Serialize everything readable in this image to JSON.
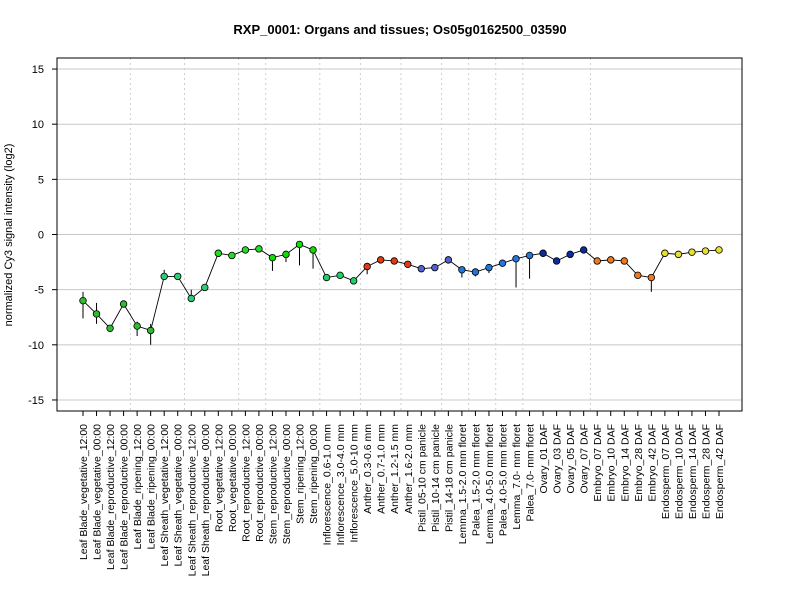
{
  "chart_data": {
    "type": "line",
    "title": "RXP_0001: Organs and tissues; Os05g0162500_03590",
    "ylabel": "normalized Cy3 signal intensity (log2)",
    "ylim": [
      -16,
      16
    ],
    "yticks": [
      -15,
      -10,
      -5,
      0,
      5,
      10,
      15
    ],
    "grid": {
      "horizontal": true,
      "vertical_dotted_group_separators": true
    },
    "group_separators_after_index": [
      3,
      7,
      11,
      13,
      17,
      20,
      23,
      26,
      28,
      30,
      32,
      37
    ],
    "categories": [
      "Leaf Blade_vegetative_12:00",
      "Leaf Blade_vegetative_00:00",
      "Leaf Blade_reproductive_12:00",
      "Leaf Blade_reproductive_00:00",
      "Leaf Blade_ripening_12:00",
      "Leaf Blade_ripening_00:00",
      "Leaf Sheath_vegetative_12:00",
      "Leaf Sheath_vegetative_00:00",
      "Leaf Sheath_reproductive_12:00",
      "Leaf Sheath_reproductive_00:00",
      "Root_vegetative_12:00",
      "Root_vegetative_00:00",
      "Root_reproductive_12:00",
      "Root_reproductive_00:00",
      "Stem_reproductive_12:00",
      "Stem_reproductive_00:00",
      "Stem_ripening_12:00",
      "Stem_ripening_00:00",
      "Inflorescence_0.6-1.0 mm",
      "Inflorescence_3.0-4.0 mm",
      "Inflorescence_5.0-10 mm",
      "Anther_0.3-0.6 mm",
      "Anther_0.7-1.0 mm",
      "Anther_1.2-1.5 mm",
      "Anther_1.6-2.0 mm",
      "Pistil_05-10 cm panicle",
      "Pistil_10-14 cm panicle",
      "Pistil_14-18 cm panicle",
      "Lemma_1.5-2.0 mm floret",
      "Palea_1.5-2.0 mm floret",
      "Lemma_4.0-5.0 mm floret",
      "Palea_4.0-5.0 mm floret",
      "Lemma_7.0- mm floret",
      "Palea_7.0- mm floret",
      "Ovary_01 DAF",
      "Ovary_03 DAF",
      "Ovary_05 DAF",
      "Ovary_07 DAF",
      "Embryo_07 DAF",
      "Embryo_10 DAF",
      "Embryo_14 DAF",
      "Embryo_28 DAF",
      "Embryo_42 DAF",
      "Endosperm_07 DAF",
      "Endosperm_10 DAF",
      "Endosperm_14 DAF",
      "Endosperm_28 DAF",
      "Endosperm_42 DAF"
    ],
    "series": [
      {
        "values": [
          -6.0,
          -7.2,
          -8.5,
          -6.3,
          -8.3,
          -8.7,
          -3.8,
          -3.8,
          -5.8,
          -4.8,
          -1.7,
          -1.9,
          -1.4,
          -1.3,
          -2.1,
          -1.8,
          -0.9,
          -1.4,
          -3.9,
          -3.7,
          -4.2,
          -2.9,
          -2.3,
          -2.4,
          -2.7,
          -3.1,
          -3.0,
          -2.3,
          -3.2,
          -3.4,
          -3.0,
          -2.6,
          -2.2,
          -1.9,
          -1.7,
          -2.4,
          -1.8,
          -1.4,
          -2.4,
          -2.3,
          -2.4,
          -3.7,
          -3.9,
          -1.7,
          -1.8,
          -1.6,
          -1.5,
          -1.4
        ],
        "error_low": [
          -7.6,
          -8.1,
          -8.5,
          -6.3,
          -9.2,
          -10.0,
          -4.0,
          -3.9,
          -6.0,
          -5.0,
          -1.8,
          -2.0,
          -1.5,
          -1.4,
          -3.3,
          -2.5,
          -2.8,
          -3.1,
          -4.1,
          -3.8,
          -4.3,
          -3.6,
          -2.5,
          -2.5,
          -2.8,
          -3.2,
          -3.1,
          -2.4,
          -3.9,
          -3.8,
          -3.5,
          -2.8,
          -4.8,
          -4.0,
          -1.9,
          -2.5,
          -1.9,
          -1.6,
          -2.5,
          -2.4,
          -2.5,
          -3.8,
          -5.2,
          -1.8,
          -1.9,
          -1.7,
          -1.6,
          -1.5
        ],
        "error_high": [
          -5.2,
          -6.2,
          -8.5,
          -6.3,
          -7.9,
          -8.1,
          -3.2,
          -3.6,
          -5.0,
          -4.6,
          -1.5,
          -1.8,
          -1.3,
          -1.2,
          -1.9,
          -1.6,
          -0.7,
          -1.2,
          -3.7,
          -3.6,
          -4.0,
          -2.7,
          -2.2,
          -2.3,
          -2.5,
          -3.0,
          -2.9,
          -2.2,
          -3.0,
          -3.3,
          -2.7,
          -2.4,
          -2.0,
          -1.7,
          -1.5,
          -2.3,
          -1.7,
          -1.2,
          -2.3,
          -2.2,
          -2.3,
          -3.6,
          -3.7,
          -1.6,
          -1.7,
          -1.5,
          -1.3,
          -1.3
        ],
        "point_colors": [
          "#2dbd2d",
          "#2dbd2d",
          "#2dbd2d",
          "#2dbd2d",
          "#2dbd2d",
          "#2dbd2d",
          "#2dcc77",
          "#2dcc77",
          "#2dcc77",
          "#2dcc77",
          "#22dd22",
          "#22dd22",
          "#22dd22",
          "#22dd22",
          "#11dd00",
          "#11dd00",
          "#11dd00",
          "#11dd00",
          "#22cc66",
          "#22cc66",
          "#22cc66",
          "#e03a17",
          "#e03a17",
          "#e03a17",
          "#e03a17",
          "#5560cc",
          "#5560cc",
          "#5560cc",
          "#2277dd",
          "#2277dd",
          "#2277dd",
          "#2277dd",
          "#2277dd",
          "#2277dd",
          "#0b2b9e",
          "#0b2b9e",
          "#0b2b9e",
          "#0b2b9e",
          "#f07820",
          "#f07820",
          "#f07820",
          "#f07820",
          "#f07820",
          "#e8e030",
          "#e8e030",
          "#e8e030",
          "#e8e030",
          "#e8e030"
        ]
      }
    ]
  }
}
